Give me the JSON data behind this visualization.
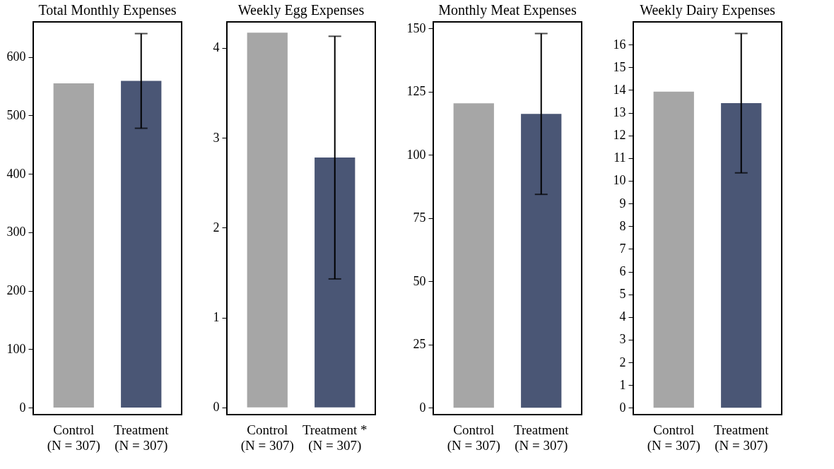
{
  "chart_data": [
    {
      "type": "bar",
      "title": "Total Monthly Expenses",
      "categories": [
        "Control\n(N = 307)",
        "Treatment\n(N = 307)"
      ],
      "values": [
        555,
        559
      ],
      "colors": [
        "#a6a6a6",
        "#4a5675"
      ],
      "errors": [
        null,
        81
      ],
      "ylim": [
        -12,
        660
      ],
      "yticks": [
        0,
        100,
        200,
        300,
        400,
        500,
        600
      ],
      "grid": false
    },
    {
      "type": "bar",
      "title": "Weekly Egg Expenses",
      "categories": [
        "Control\n(N = 307)",
        "Treatment *\n(N = 307)"
      ],
      "values": [
        4.17,
        2.78
      ],
      "colors": [
        "#a6a6a6",
        "#4a5675"
      ],
      "errors": [
        null,
        1.35
      ],
      "ylim": [
        -0.08,
        4.29
      ],
      "yticks": [
        0,
        1,
        2,
        3,
        4
      ],
      "grid": false
    },
    {
      "type": "bar",
      "title": "Monthly Meat Expenses",
      "categories": [
        "Control\n(N = 307)",
        "Treatment\n(N = 307)"
      ],
      "values": [
        120.4,
        116.2
      ],
      "colors": [
        "#a6a6a6",
        "#4a5675"
      ],
      "errors": [
        null,
        31.8
      ],
      "ylim": [
        -2.7,
        152.6
      ],
      "yticks": [
        0,
        25,
        50,
        75,
        100,
        125,
        150
      ],
      "grid": false
    },
    {
      "type": "bar",
      "title": "Weekly Dairy Expenses",
      "categories": [
        "Control\n(N = 307)",
        "Treatment\n(N = 307)"
      ],
      "values": [
        13.93,
        13.42
      ],
      "colors": [
        "#a6a6a6",
        "#4a5675"
      ],
      "errors": [
        null,
        3.07
      ],
      "ylim": [
        -0.3,
        17
      ],
      "yticks": [
        0,
        1,
        2,
        3,
        4,
        5,
        6,
        7,
        8,
        9,
        10,
        11,
        12,
        13,
        14,
        15,
        16
      ],
      "grid": false
    }
  ]
}
